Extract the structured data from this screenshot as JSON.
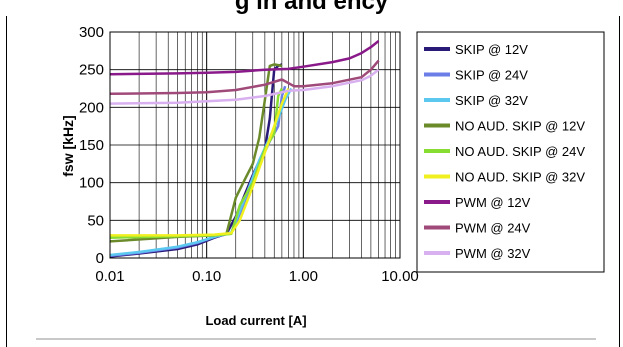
{
  "figure_heading": "g  in  and  ency",
  "chart_data": {
    "type": "line",
    "xlabel": "Load current [A]",
    "ylabel": "fsw [kHz]",
    "xscale": "log",
    "xlim": [
      0.01,
      10
    ],
    "ylim": [
      0,
      300
    ],
    "xticks": [
      "0.01",
      "0.10",
      "1.00",
      "10.00"
    ],
    "yticks": [
      "0",
      "50",
      "100",
      "150",
      "200",
      "250",
      "300"
    ],
    "grid": true,
    "legend_position": "right",
    "series": [
      {
        "name": "SKIP @ 12V",
        "color": "#2a1a78",
        "points": [
          [
            0.01,
            2
          ],
          [
            0.02,
            6
          ],
          [
            0.05,
            12
          ],
          [
            0.08,
            18
          ],
          [
            0.12,
            27
          ],
          [
            0.16,
            32
          ],
          [
            0.2,
            55
          ],
          [
            0.3,
            110
          ],
          [
            0.4,
            145
          ],
          [
            0.45,
            185
          ],
          [
            0.5,
            250
          ],
          [
            0.55,
            255
          ],
          [
            0.6,
            257
          ]
        ]
      },
      {
        "name": "SKIP @ 24V",
        "color": "#6b7ee8",
        "points": [
          [
            0.01,
            3
          ],
          [
            0.02,
            7
          ],
          [
            0.05,
            14
          ],
          [
            0.08,
            20
          ],
          [
            0.12,
            28
          ],
          [
            0.18,
            33
          ],
          [
            0.25,
            75
          ],
          [
            0.35,
            125
          ],
          [
            0.45,
            155
          ],
          [
            0.55,
            175
          ],
          [
            0.6,
            215
          ],
          [
            0.65,
            228
          ]
        ]
      },
      {
        "name": "SKIP @ 32V",
        "color": "#5bc8f0",
        "points": [
          [
            0.01,
            4
          ],
          [
            0.02,
            8
          ],
          [
            0.05,
            15
          ],
          [
            0.08,
            21
          ],
          [
            0.12,
            28
          ],
          [
            0.18,
            34
          ],
          [
            0.25,
            80
          ],
          [
            0.35,
            130
          ],
          [
            0.45,
            160
          ],
          [
            0.55,
            185
          ],
          [
            0.65,
            210
          ],
          [
            0.75,
            225
          ]
        ]
      },
      {
        "name": "NO AUD. SKIP @ 12V",
        "color": "#6b8a2a",
        "points": [
          [
            0.01,
            22
          ],
          [
            0.05,
            28
          ],
          [
            0.12,
            30
          ],
          [
            0.16,
            32
          ],
          [
            0.2,
            80
          ],
          [
            0.25,
            105
          ],
          [
            0.3,
            125
          ],
          [
            0.35,
            160
          ],
          [
            0.4,
            210
          ],
          [
            0.45,
            255
          ],
          [
            0.5,
            257
          ],
          [
            0.6,
            255
          ]
        ]
      },
      {
        "name": "NO AUD. SKIP @ 24V",
        "color": "#88dd33",
        "points": [
          [
            0.01,
            27
          ],
          [
            0.05,
            29
          ],
          [
            0.12,
            30
          ],
          [
            0.18,
            32
          ],
          [
            0.22,
            70
          ],
          [
            0.3,
            100
          ],
          [
            0.4,
            145
          ],
          [
            0.5,
            165
          ],
          [
            0.55,
            215
          ],
          [
            0.6,
            225
          ]
        ]
      },
      {
        "name": "NO AUD. SKIP @ 32V",
        "color": "#f0f020",
        "points": [
          [
            0.01,
            30
          ],
          [
            0.05,
            30
          ],
          [
            0.12,
            31
          ],
          [
            0.18,
            33
          ],
          [
            0.22,
            50
          ],
          [
            0.3,
            95
          ],
          [
            0.4,
            140
          ],
          [
            0.5,
            175
          ],
          [
            0.6,
            205
          ],
          [
            0.7,
            225
          ]
        ]
      },
      {
        "name": "PWM @ 12V",
        "color": "#8a1a8a",
        "points": [
          [
            0.01,
            244
          ],
          [
            0.05,
            245
          ],
          [
            0.1,
            246
          ],
          [
            0.2,
            247
          ],
          [
            0.4,
            250
          ],
          [
            0.7,
            251
          ],
          [
            1,
            254
          ],
          [
            2,
            260
          ],
          [
            3,
            265
          ],
          [
            4,
            272
          ],
          [
            5,
            280
          ],
          [
            6,
            288
          ]
        ]
      },
      {
        "name": "PWM @ 24V",
        "color": "#a04a7a",
        "points": [
          [
            0.01,
            218
          ],
          [
            0.05,
            219
          ],
          [
            0.1,
            220
          ],
          [
            0.2,
            223
          ],
          [
            0.4,
            230
          ],
          [
            0.6,
            237
          ],
          [
            0.8,
            228
          ],
          [
            1,
            228
          ],
          [
            2,
            232
          ],
          [
            4,
            240
          ],
          [
            5,
            250
          ],
          [
            6,
            262
          ]
        ]
      },
      {
        "name": "PWM @ 32V",
        "color": "#d8b0f0",
        "points": [
          [
            0.01,
            205
          ],
          [
            0.05,
            206
          ],
          [
            0.1,
            208
          ],
          [
            0.2,
            210
          ],
          [
            0.4,
            215
          ],
          [
            0.7,
            222
          ],
          [
            1,
            223
          ],
          [
            2,
            228
          ],
          [
            4,
            236
          ],
          [
            5,
            242
          ],
          [
            6,
            250
          ]
        ]
      }
    ]
  }
}
